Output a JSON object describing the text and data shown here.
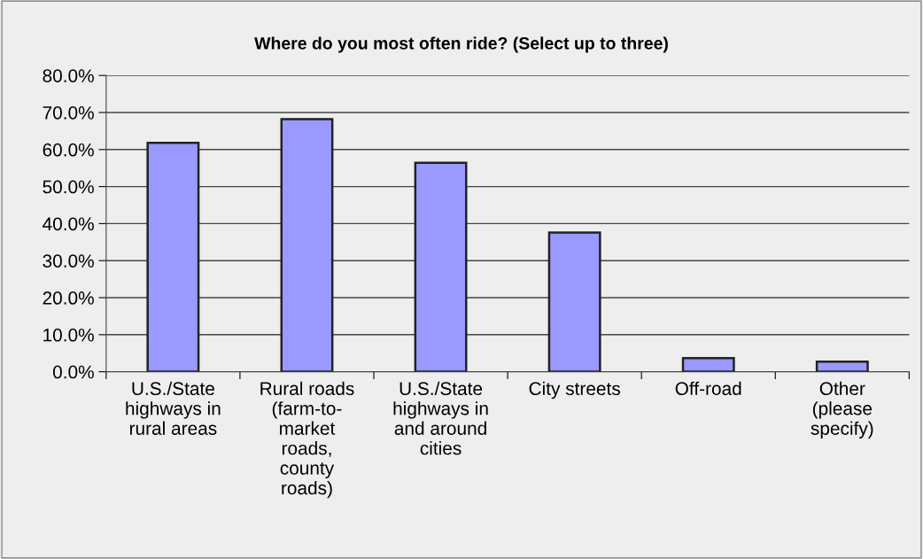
{
  "chart_data": {
    "type": "bar",
    "title": "Where do you most often ride? (Select up to three)",
    "categories": [
      "U.S./State\nhighways in\nrural areas",
      "Rural roads\n(farm-to-\nmarket\nroads,\ncounty\nroads)",
      "U.S./State\nhighways in\nand around\ncities",
      "City streets",
      "Off-road",
      "Other\n(please\nspecify)"
    ],
    "values": [
      61.8,
      68.2,
      56.4,
      37.6,
      3.7,
      2.7
    ],
    "color": "#9999ff",
    "ylim": [
      0,
      80
    ],
    "yticks": [
      {
        "value": 0,
        "label": "0.0%"
      },
      {
        "value": 10,
        "label": "10.0%"
      },
      {
        "value": 20,
        "label": "20.0%"
      },
      {
        "value": 30,
        "label": "30.0%"
      },
      {
        "value": 40,
        "label": "40.0%"
      },
      {
        "value": 50,
        "label": "50.0%"
      },
      {
        "value": 60,
        "label": "60.0%"
      },
      {
        "value": 70,
        "label": "70.0%"
      },
      {
        "value": 80,
        "label": "80.0%"
      }
    ],
    "grid": "y"
  }
}
